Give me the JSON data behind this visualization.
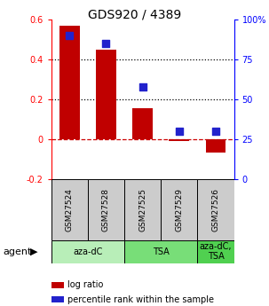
{
  "title": "GDS920 / 4389",
  "samples": [
    "GSM27524",
    "GSM27528",
    "GSM27525",
    "GSM27529",
    "GSM27526"
  ],
  "log_ratios": [
    0.57,
    0.45,
    0.155,
    -0.01,
    -0.065
  ],
  "percentile_ranks": [
    90,
    85,
    58,
    30,
    30
  ],
  "agents": [
    {
      "label": "aza-dC",
      "start": 0,
      "end": 2,
      "color": "#b8eeb8"
    },
    {
      "label": "TSA",
      "start": 2,
      "end": 4,
      "color": "#78de78"
    },
    {
      "label": "aza-dC,\nTSA",
      "start": 4,
      "end": 5,
      "color": "#50d050"
    }
  ],
  "bar_color": "#c00000",
  "dot_color": "#2222cc",
  "ylim_left": [
    -0.2,
    0.6
  ],
  "ylim_right": [
    0,
    100
  ],
  "yticks_left": [
    -0.2,
    0.0,
    0.2,
    0.4,
    0.6
  ],
  "yticks_right": [
    0,
    25,
    50,
    75,
    100
  ],
  "ytick_labels_left": [
    "-0.2",
    "0",
    "0.2",
    "0.4",
    "0.6"
  ],
  "ytick_labels_right": [
    "0",
    "25",
    "50",
    "75",
    "100%"
  ],
  "hline_dashed_red": 0.0,
  "hlines_dotted_black": [
    0.2,
    0.4
  ],
  "agent_label": "agent",
  "legend_items": [
    {
      "color": "#c00000",
      "label": "log ratio"
    },
    {
      "color": "#2222cc",
      "label": "percentile rank within the sample"
    }
  ],
  "bar_width": 0.55,
  "dot_size": 40,
  "sample_box_color": "#cccccc"
}
